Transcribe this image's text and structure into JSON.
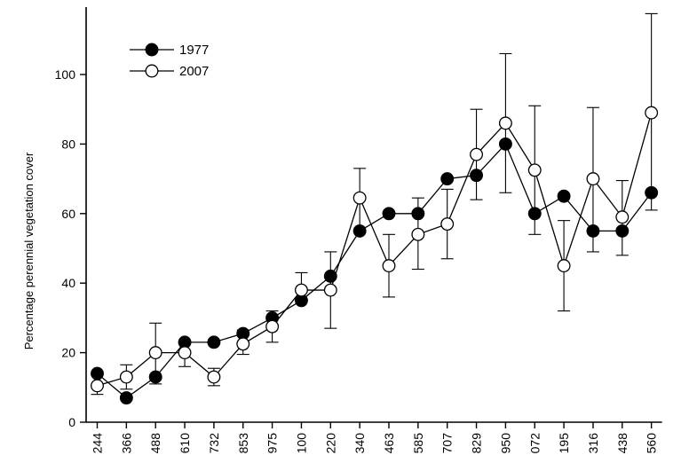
{
  "chart_data": {
    "type": "line",
    "title": "",
    "xlabel": "",
    "ylabel": "Percentage perennial vegetation cover",
    "ylim": [
      0,
      120
    ],
    "yticks": [
      0,
      20,
      40,
      60,
      80,
      100
    ],
    "categories": [
      "244",
      "366",
      "488",
      "610",
      "732",
      "853",
      "975",
      "100",
      "220",
      "340",
      "463",
      "585",
      "707",
      "829",
      "950",
      "072",
      "195",
      "316",
      "438",
      "560"
    ],
    "legend_position": "top-left",
    "grid": false,
    "series": [
      {
        "name": "1977",
        "marker": "filled-circle",
        "color": "#000000",
        "values": [
          14,
          7,
          13,
          23,
          23,
          25.5,
          30,
          35,
          42,
          55,
          60,
          60,
          70,
          71,
          80,
          60,
          65,
          55,
          55,
          66
        ],
        "err_low": [
          null,
          null,
          11,
          null,
          null,
          null,
          null,
          null,
          null,
          null,
          null,
          null,
          null,
          null,
          66,
          54,
          null,
          49,
          48,
          61
        ],
        "err_high": [
          null,
          null,
          28.5,
          null,
          null,
          null,
          null,
          null,
          null,
          null,
          null,
          null,
          null,
          null,
          106,
          91,
          null,
          90.5,
          69.5,
          117.5
        ]
      },
      {
        "name": "2007",
        "marker": "open-circle",
        "color": "#000000",
        "values": [
          10.5,
          13,
          20,
          20,
          13,
          22.5,
          27.5,
          38,
          38,
          64.5,
          45,
          54,
          57,
          77,
          86,
          72.5,
          45,
          70,
          59,
          89
        ],
        "err_low": [
          8,
          9.5,
          null,
          16,
          10.5,
          19.5,
          23,
          null,
          27,
          54.5,
          36,
          44,
          47,
          64,
          null,
          null,
          32,
          null,
          null,
          null
        ],
        "err_high": [
          14.5,
          16.5,
          null,
          23.5,
          15.5,
          26.5,
          32,
          43,
          49,
          73,
          54,
          64.5,
          67,
          90,
          null,
          null,
          58,
          null,
          null,
          null
        ]
      }
    ]
  }
}
